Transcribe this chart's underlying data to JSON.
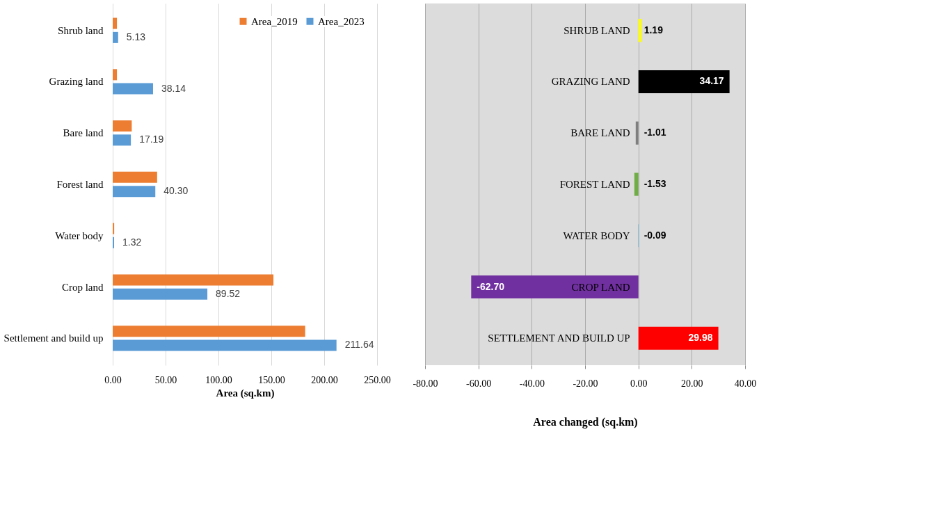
{
  "chart_data": [
    {
      "type": "bar",
      "orientation": "horizontal",
      "xlabel": "Area (sq.km)",
      "categories": [
        "Shrub land",
        "Grazing land",
        "Bare land",
        "Forest land",
        "Water body",
        "Crop land",
        "Settlement and build up"
      ],
      "series": [
        {
          "name": "Area_2019",
          "color": "#ed7d31",
          "values": [
            4,
            4,
            18,
            42,
            1.4,
            152,
            182
          ]
        },
        {
          "name": "Area_2023",
          "color": "#5b9bd5",
          "values": [
            5.13,
            38.14,
            17.19,
            40.3,
            1.32,
            89.52,
            211.64
          ],
          "value_labels": [
            "5.13",
            "38.14",
            "17.19",
            "40.30",
            "1.32",
            "89.52",
            "211.64"
          ]
        }
      ],
      "xlim": [
        0,
        250
      ],
      "xticks": [
        {
          "value": 0,
          "label": "0.00"
        },
        {
          "value": 50,
          "label": "50.00"
        },
        {
          "value": 100,
          "label": "100.00"
        },
        {
          "value": 150,
          "label": "150.00"
        },
        {
          "value": 200,
          "label": "200.00"
        },
        {
          "value": 250,
          "label": "250.00"
        }
      ],
      "grid": "x",
      "legend": "top right"
    },
    {
      "type": "bar",
      "orientation": "horizontal",
      "xlabel": "Area changed  (sq.km)",
      "categories": [
        "SHRUB LAND",
        "GRAZING LAND",
        "BARE LAND",
        "FOREST LAND",
        "WATER BODY",
        "CROP LAND",
        "SETTLEMENT AND BUILD UP"
      ],
      "values": [
        1.19,
        34.17,
        -1.01,
        -1.53,
        -0.09,
        -62.7,
        29.98
      ],
      "colors": [
        "#ffff00",
        "#000000",
        "#7f7f7f",
        "#70ad47",
        "#00b0f0",
        "#7030a0",
        "#ff0000"
      ],
      "value_labels": [
        "1.19",
        "34.17",
        "-1.01",
        "-1.53",
        "-0.09",
        "-62.70",
        "29.98"
      ],
      "xlim": [
        -80,
        40
      ],
      "xticks": [
        {
          "value": -80,
          "label": "-80.00"
        },
        {
          "value": -60,
          "label": "-60.00"
        },
        {
          "value": -40,
          "label": "-40.00"
        },
        {
          "value": -20,
          "label": "-20.00"
        },
        {
          "value": 0,
          "label": "0.00"
        },
        {
          "value": 20,
          "label": "20.00"
        },
        {
          "value": 40,
          "label": "40.00"
        }
      ],
      "grid": "x"
    }
  ]
}
